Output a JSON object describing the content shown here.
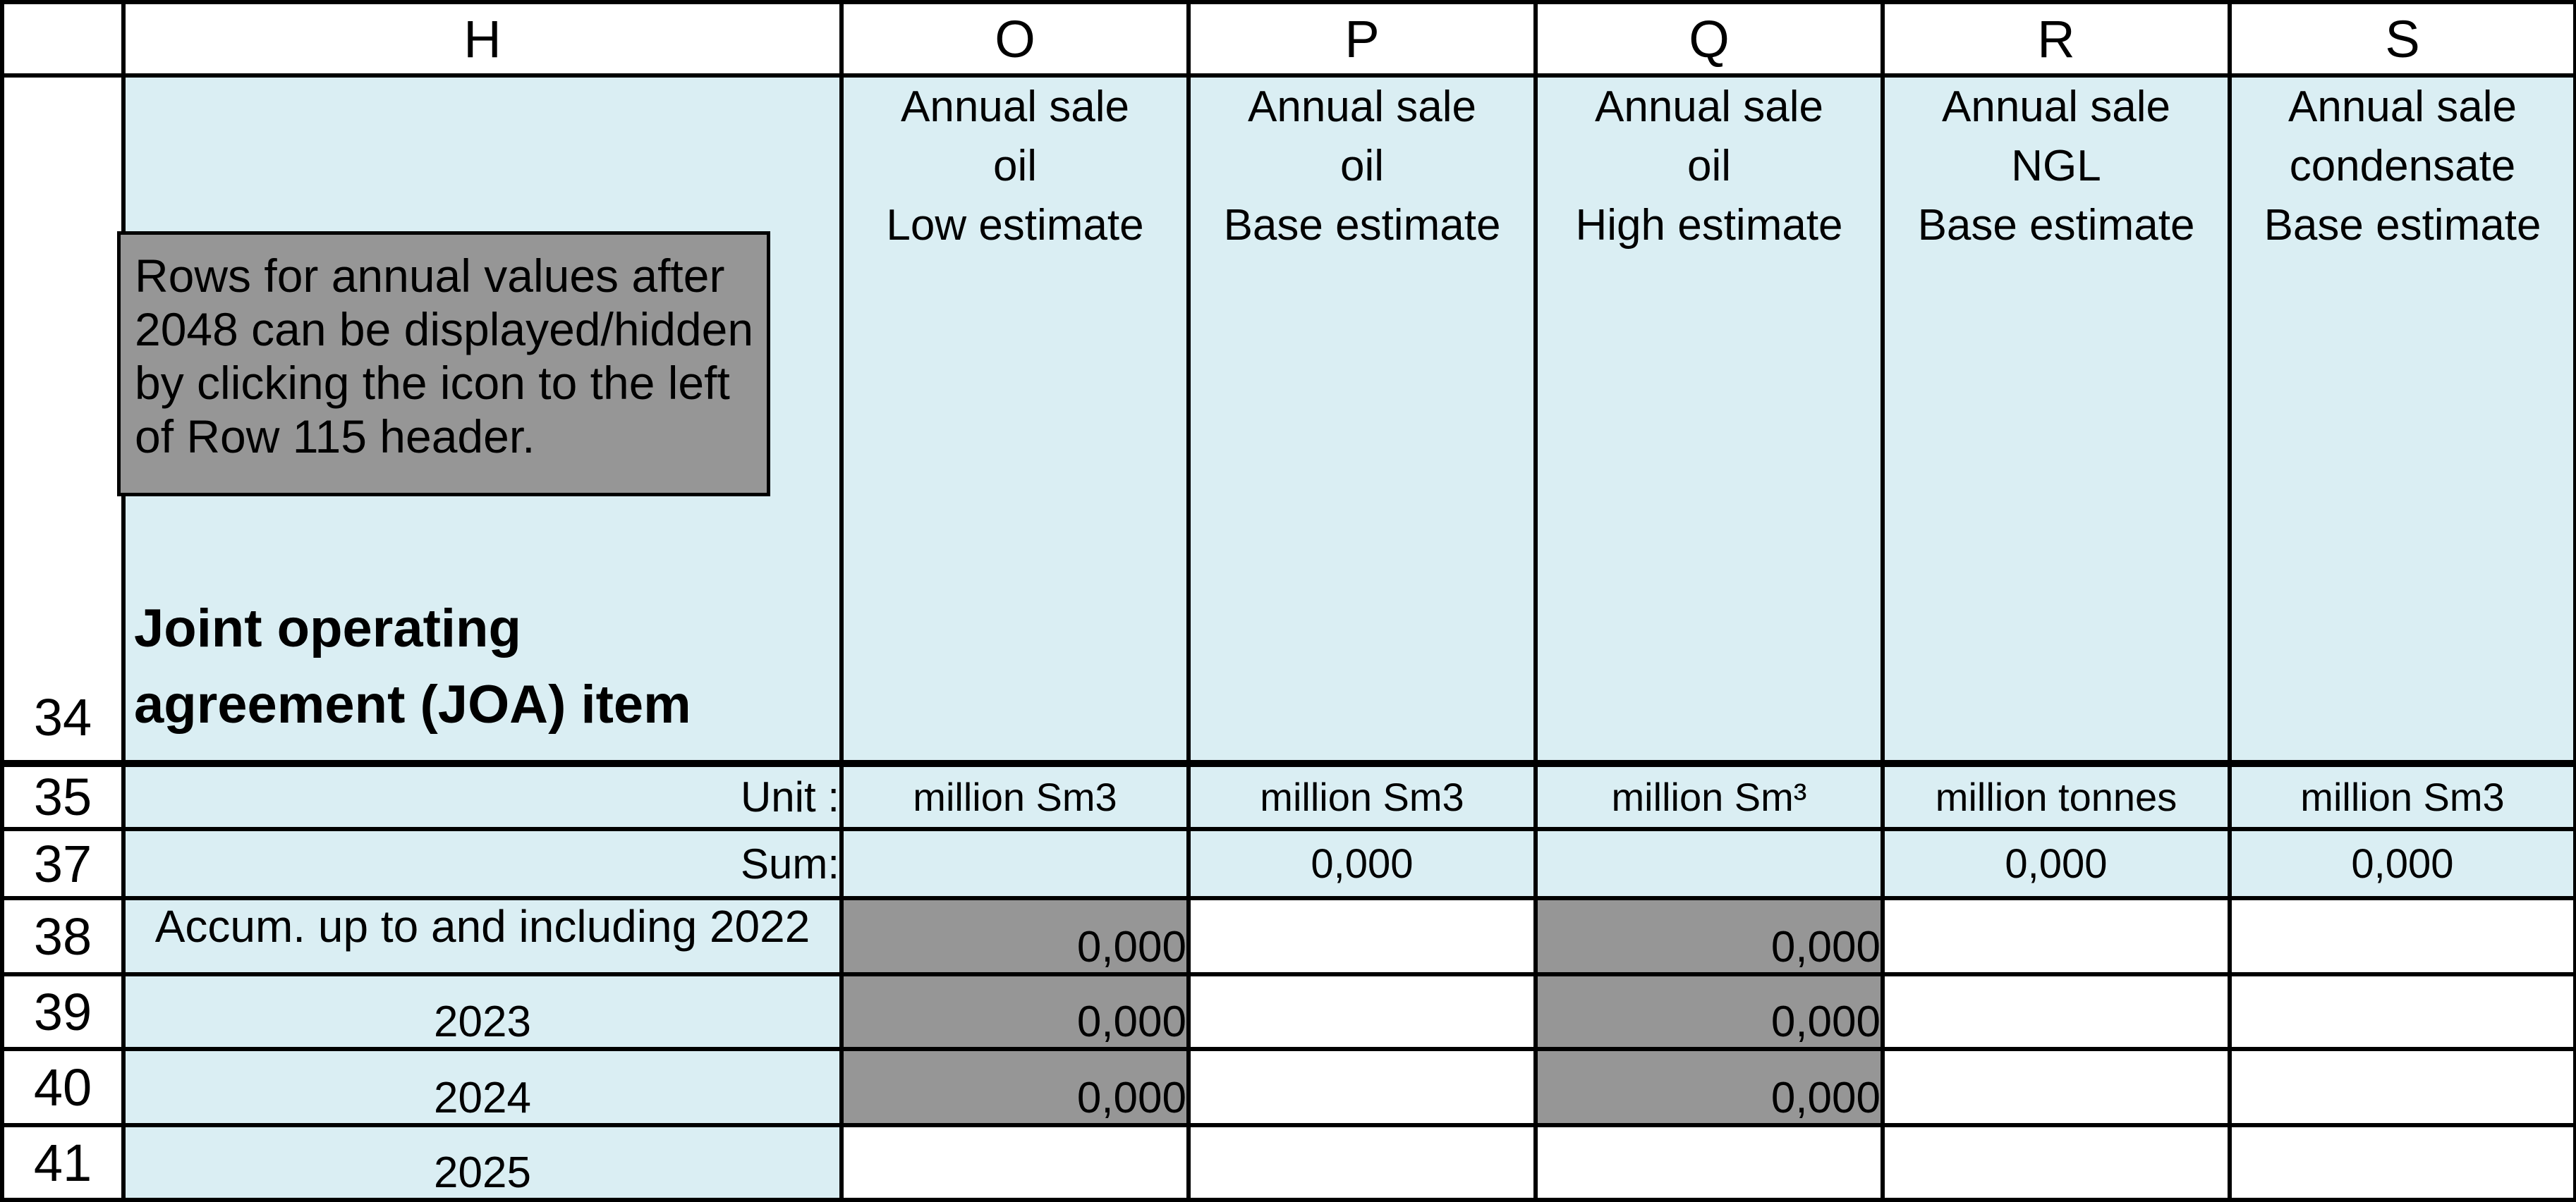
{
  "columns": {
    "corner": "",
    "h": "H",
    "o": "O",
    "p": "P",
    "q": "Q",
    "r": "R",
    "s": "S"
  },
  "rows": {
    "r34": "34",
    "r35": "35",
    "r37": "37",
    "r38": "38",
    "r39": "39",
    "r40": "40",
    "r41": "41"
  },
  "header": {
    "joa_title_line1": "Joint operating",
    "joa_title_line2": "agreement (JOA)  item",
    "o": [
      "Annual sale",
      "oil",
      "Low estimate"
    ],
    "p": [
      "Annual sale",
      "oil",
      "Base estimate"
    ],
    "q": [
      "Annual sale",
      "oil",
      "High estimate"
    ],
    "r": [
      "Annual sale",
      "NGL",
      "Base estimate"
    ],
    "s": [
      "Annual sale",
      "condensate",
      "Base estimate"
    ]
  },
  "note": {
    "text_line1": "Rows for annual values after",
    "text_line2": "2048 can be displayed/hidden",
    "text_line3": "by clicking the icon to the left",
    "text_line4": "of Row 115 header."
  },
  "units": {
    "label": "Unit :",
    "o": "million Sm3",
    "p": "million Sm3",
    "q": "million Sm³",
    "r": "million tonnes",
    "s": "million Sm3"
  },
  "sum": {
    "label": "Sum:",
    "o": "",
    "p": "0,000",
    "q": "",
    "r": "0,000",
    "s": "0,000"
  },
  "data_rows": [
    {
      "label": "Accum. up to and including 2022",
      "o": "0,000",
      "p": "",
      "q": "0,000",
      "r": "",
      "s": ""
    },
    {
      "label": "2023",
      "o": "0,000",
      "p": "",
      "q": "0,000",
      "r": "",
      "s": ""
    },
    {
      "label": "2024",
      "o": "0,000",
      "p": "",
      "q": "0,000",
      "r": "",
      "s": ""
    },
    {
      "label": "2025",
      "o": "",
      "p": "",
      "q": "",
      "r": "",
      "s": ""
    }
  ],
  "colors": {
    "input_fill": "#daeef3",
    "locked_fill": "#969696",
    "grid": "#000000"
  }
}
